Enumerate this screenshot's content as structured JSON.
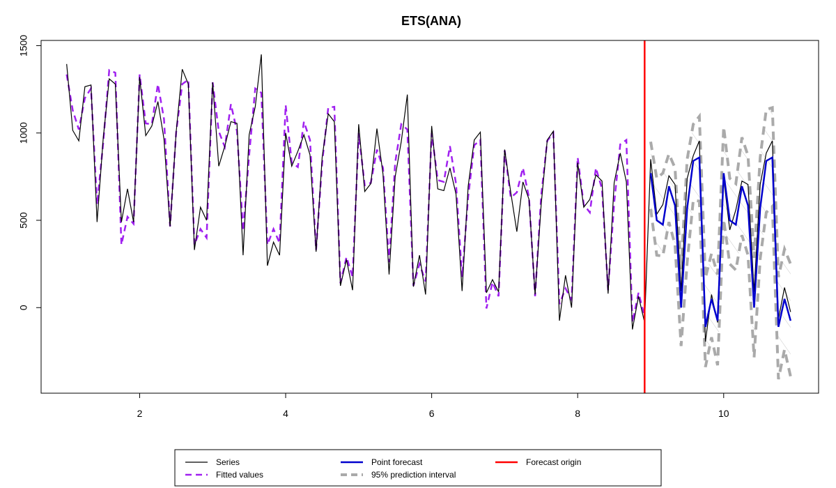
{
  "chart_data": {
    "type": "line",
    "title": "ETS(ANA)",
    "xlabel": "",
    "ylabel": "",
    "xlim": [
      0.65,
      11.3
    ],
    "ylim": [
      -490,
      1530
    ],
    "x_ticks": [
      2,
      4,
      6,
      8,
      10
    ],
    "y_ticks": [
      0,
      500,
      1000,
      1500
    ],
    "grid": false,
    "legend_position": "bottom",
    "forecast_origin_x": 8.917,
    "series": [
      {
        "name": "Series",
        "color": "#000000",
        "style": "solid",
        "x_start": 1.0,
        "x_step": 0.0833333,
        "values": [
          1395,
          1015,
          955,
          1265,
          1275,
          490,
          965,
          1310,
          1280,
          490,
          680,
          490,
          1320,
          985,
          1040,
          1180,
          965,
          465,
          1005,
          1365,
          1280,
          330,
          575,
          500,
          1290,
          810,
          925,
          1065,
          1055,
          300,
          990,
          1150,
          1450,
          240,
          375,
          300,
          1000,
          810,
          895,
          990,
          875,
          320,
          860,
          1110,
          1065,
          125,
          275,
          100,
          1050,
          665,
          710,
          1025,
          765,
          190,
          750,
          950,
          1220,
          120,
          300,
          75,
          1040,
          680,
          670,
          800,
          650,
          95,
          695,
          960,
          1005,
          85,
          160,
          90,
          905,
          660,
          435,
          720,
          620,
          75,
          590,
          960,
          1010,
          -75,
          185,
          0,
          830,
          575,
          620,
          760,
          725,
          80,
          715,
          885,
          720,
          -125,
          65,
          -85,
          850,
          535,
          590,
          755,
          705,
          95,
          740,
          870,
          955,
          -195,
          75,
          -85,
          740,
          445,
          560,
          725,
          705,
          90,
          705,
          885,
          955,
          -65,
          115,
          -25
        ]
      },
      {
        "name": "Fitted values",
        "color": "#a020f0",
        "style": "dashed",
        "x_start": 1.0,
        "x_step": 0.0833333,
        "values": [
          1335,
          1130,
          1020,
          1200,
          1255,
          590,
          940,
          1360,
          1345,
          360,
          520,
          480,
          1335,
          1055,
          1050,
          1280,
          1080,
          465,
          1005,
          1280,
          1305,
          360,
          450,
          400,
          1290,
          1010,
          920,
          1165,
          1010,
          440,
          875,
          1255,
          1230,
          360,
          450,
          370,
          1160,
          830,
          805,
          1065,
          960,
          330,
          830,
          1145,
          1150,
          140,
          290,
          175,
          1000,
          700,
          715,
          905,
          800,
          260,
          830,
          1050,
          1020,
          125,
          250,
          150,
          1000,
          730,
          720,
          925,
          710,
          175,
          635,
          930,
          960,
          -5,
          145,
          65,
          900,
          630,
          660,
          800,
          630,
          65,
          640,
          955,
          1000,
          20,
          110,
          45,
          860,
          590,
          545,
          800,
          680,
          100,
          600,
          935,
          960,
          -85,
          85,
          -50
        ]
      },
      {
        "name": "Point forecast",
        "color": "#0000cd",
        "style": "solid",
        "x_start": 9.0,
        "x_step": 0.0833333,
        "values": [
          770,
          500,
          475,
          695,
          585,
          0,
          570,
          840,
          860,
          -110,
          50,
          -75,
          770,
          500,
          475,
          695,
          585,
          0,
          570,
          840,
          860,
          -110,
          50,
          -75
        ]
      },
      {
        "name": "95% prediction interval",
        "color": "#aaaaaa",
        "style": "dashed",
        "upper_x_start": 9.0,
        "lower_x_start": 9.0,
        "x_step": 0.0833333,
        "upper": [
          950,
          740,
          770,
          880,
          800,
          220,
          850,
          1050,
          1095,
          170,
          310,
          190,
          1035,
          740,
          710,
          975,
          870,
          285,
          860,
          1135,
          1145,
          175,
          335,
          250
        ],
        "lower": [
          565,
          300,
          295,
          490,
          360,
          -220,
          260,
          615,
          610,
          -340,
          -170,
          -330,
          505,
          250,
          215,
          415,
          300,
          -285,
          280,
          545,
          580,
          -410,
          -240,
          -395
        ]
      },
      {
        "name": "Forecast origin",
        "color": "#ff0000",
        "style": "solid"
      }
    ]
  },
  "legend": {
    "items": [
      {
        "label": "Series",
        "color": "#000000",
        "style": "solid"
      },
      {
        "label": "Fitted values",
        "color": "#a020f0",
        "style": "dashed"
      },
      {
        "label": "Point forecast",
        "color": "#0000cd",
        "style": "solid"
      },
      {
        "label": "95% prediction interval",
        "color": "#aaaaaa",
        "style": "dashed"
      },
      {
        "label": "Forecast origin",
        "color": "#ff0000",
        "style": "solid"
      }
    ]
  }
}
